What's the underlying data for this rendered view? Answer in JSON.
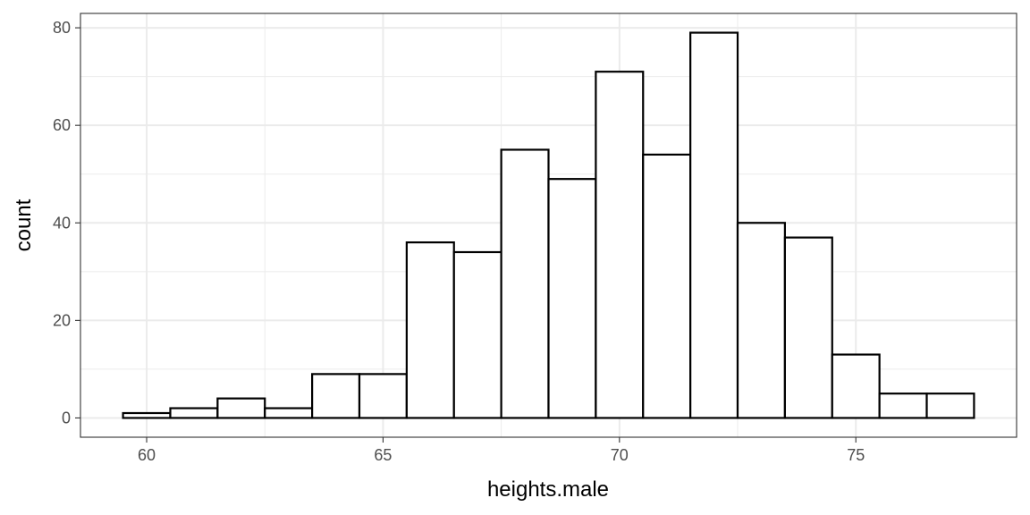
{
  "chart_data": {
    "type": "bar",
    "subtype": "histogram",
    "title": "",
    "xlabel": "heights.male",
    "ylabel": "count",
    "bins": [
      {
        "x_start": 59.5,
        "x_end": 60.5,
        "count": 1
      },
      {
        "x_start": 60.5,
        "x_end": 61.5,
        "count": 2
      },
      {
        "x_start": 61.5,
        "x_end": 62.5,
        "count": 4
      },
      {
        "x_start": 62.5,
        "x_end": 63.5,
        "count": 2
      },
      {
        "x_start": 63.5,
        "x_end": 64.5,
        "count": 9
      },
      {
        "x_start": 64.5,
        "x_end": 65.5,
        "count": 9
      },
      {
        "x_start": 65.5,
        "x_end": 66.5,
        "count": 36
      },
      {
        "x_start": 66.5,
        "x_end": 67.5,
        "count": 34
      },
      {
        "x_start": 67.5,
        "x_end": 68.5,
        "count": 55
      },
      {
        "x_start": 68.5,
        "x_end": 69.5,
        "count": 49
      },
      {
        "x_start": 69.5,
        "x_end": 70.5,
        "count": 71
      },
      {
        "x_start": 70.5,
        "x_end": 71.5,
        "count": 54
      },
      {
        "x_start": 71.5,
        "x_end": 72.5,
        "count": 79
      },
      {
        "x_start": 72.5,
        "x_end": 73.5,
        "count": 40
      },
      {
        "x_start": 73.5,
        "x_end": 74.5,
        "count": 37
      },
      {
        "x_start": 74.5,
        "x_end": 75.5,
        "count": 13
      },
      {
        "x_start": 75.5,
        "x_end": 76.5,
        "count": 5
      },
      {
        "x_start": 76.5,
        "x_end": 77.5,
        "count": 5
      }
    ],
    "xlim": [
      58.6,
      78.4
    ],
    "ylim": [
      -3.95,
      82.95
    ],
    "x_ticks": [
      60,
      65,
      70,
      75
    ],
    "y_ticks": [
      0,
      20,
      40,
      60,
      80
    ],
    "grid": true,
    "colors": {
      "bar_fill": "#ffffff",
      "bar_stroke": "#000000",
      "grid": "#ebebeb",
      "panel_border": "#333333"
    }
  }
}
